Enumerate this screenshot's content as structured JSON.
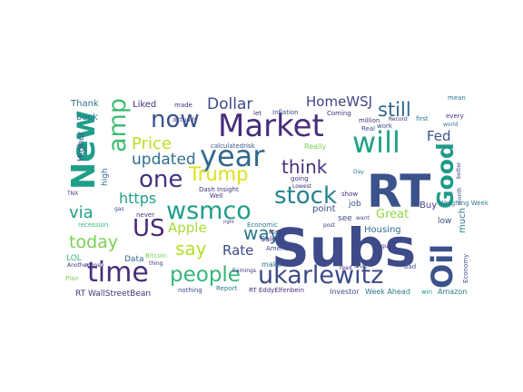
{
  "words": [
    {
      "text": "Subs",
      "color": "#3e4a89"
    },
    {
      "text": "RT",
      "color": "#3b528b"
    },
    {
      "text": "Market",
      "color": "#472d7b"
    },
    {
      "text": "New",
      "color": "#1f9e89"
    },
    {
      "text": "year",
      "color": "#31688e"
    },
    {
      "text": "Oil",
      "color": "#3b528b"
    },
    {
      "text": "will",
      "color": "#20a386"
    },
    {
      "text": "time",
      "color": "#472d7b"
    },
    {
      "text": "ukarlewitz",
      "color": "#3e4a89"
    },
    {
      "text": "Good",
      "color": "#1f9a8a"
    },
    {
      "text": "wsmco",
      "color": "#1f9e89"
    },
    {
      "text": "stock",
      "color": "#26828e"
    },
    {
      "text": "amp",
      "color": "#3fbc73"
    },
    {
      "text": "people",
      "color": "#35b779"
    },
    {
      "text": "now",
      "color": "#3b528b"
    },
    {
      "text": "one",
      "color": "#46327e"
    },
    {
      "text": "US",
      "color": "#482878"
    },
    {
      "text": "Trump",
      "color": "#d8e219"
    },
    {
      "text": "Price",
      "color": "#bddf26"
    },
    {
      "text": "think",
      "color": "#46327e"
    },
    {
      "text": "still",
      "color": "#31688e"
    },
    {
      "text": "updated",
      "color": "#2d708e"
    },
    {
      "text": "say",
      "color": "#b5de2b"
    },
    {
      "text": "today",
      "color": "#7ad151"
    },
    {
      "text": "via",
      "color": "#1f9e89"
    },
    {
      "text": "way",
      "color": "#2a788e"
    },
    {
      "text": "Dollar",
      "color": "#3e4a89"
    },
    {
      "text": "https",
      "color": "#1f9e89"
    },
    {
      "text": "Rate",
      "color": "#3e4a89"
    },
    {
      "text": "Apple",
      "color": "#a5db36"
    },
    {
      "text": "HomeWSJ",
      "color": "#414487"
    },
    {
      "text": "Fed",
      "color": "#3b528b"
    },
    {
      "text": "Great",
      "color": "#8fd744"
    },
    {
      "text": "Buy",
      "color": "#433e85"
    },
    {
      "text": "Liked",
      "color": "#46327e"
    },
    {
      "text": "Thank",
      "color": "#2c728e"
    },
    {
      "text": "back",
      "color": "#2a788e"
    },
    {
      "text": "Higher",
      "color": "#3b528b"
    },
    {
      "text": "high",
      "color": "#2f6c8e"
    },
    {
      "text": "Data",
      "color": "#31688e"
    },
    {
      "text": "LOL",
      "color": "#35b779"
    },
    {
      "text": "Plan",
      "color": "#7ad151"
    },
    {
      "text": "RT WallStreetBean",
      "color": "#46327e"
    },
    {
      "text": "Report",
      "color": "#2a788e"
    },
    {
      "text": "nothing",
      "color": "#3e4a89"
    },
    {
      "text": "RT EddyElfenbein",
      "color": "#472d7b"
    },
    {
      "text": "Investor",
      "color": "#3b528b"
    },
    {
      "text": "Week Ahead",
      "color": "#2a788e"
    },
    {
      "text": "win",
      "color": "#1f9e89"
    },
    {
      "text": "Amazon",
      "color": "#2a788e"
    },
    {
      "text": "Economy",
      "color": "#3b528b"
    },
    {
      "text": "Housing",
      "color": "#2d708e"
    },
    {
      "text": "low",
      "color": "#3e4a89"
    },
    {
      "text": "much",
      "color": "#2a788e"
    },
    {
      "text": "job",
      "color": "#3b528b"
    },
    {
      "text": "see",
      "color": "#3e4a89"
    },
    {
      "text": "point",
      "color": "#3e4a89"
    },
    {
      "text": "Sale",
      "color": "#482878"
    },
    {
      "text": "make",
      "color": "#2c728e"
    },
    {
      "text": "May",
      "color": "#46327e"
    },
    {
      "text": "America",
      "color": "#3e4a89"
    },
    {
      "text": "Economic",
      "color": "#2a788e"
    },
    {
      "text": "Really",
      "color": "#7ad151"
    },
    {
      "text": "Well",
      "color": "#46327e"
    },
    {
      "text": "never",
      "color": "#46327e"
    },
    {
      "text": "Inflation",
      "color": "#3e4a89"
    },
    {
      "text": "Coming",
      "color": "#472d7b"
    },
    {
      "text": "work",
      "color": "#3e4a89"
    },
    {
      "text": "mean",
      "color": "#2a788e"
    },
    {
      "text": "every",
      "color": "#46327e"
    },
    {
      "text": "first",
      "color": "#2a788e"
    },
    {
      "text": "Real",
      "color": "#3e4a89"
    },
    {
      "text": "million",
      "color": "#472d7b"
    },
    {
      "text": "made",
      "color": "#46327e"
    },
    {
      "text": "let",
      "color": "#472d7b"
    },
    {
      "text": "actually",
      "color": "#3e4a89"
    },
    {
      "text": "calculatedrisk",
      "color": "#3b528b"
    },
    {
      "text": "Dash Insight",
      "color": "#46327e"
    },
    {
      "text": "bad",
      "color": "#3e4a89"
    },
    {
      "text": "true",
      "color": "#3e4a89"
    },
    {
      "text": "read",
      "color": "#472d7b"
    },
    {
      "text": "post",
      "color": "#46327e"
    },
    {
      "text": "show",
      "color": "#472d7b"
    },
    {
      "text": "want",
      "color": "#3e4a89"
    },
    {
      "text": "Day",
      "color": "#2a788e"
    },
    {
      "text": "money",
      "color": "#46327e"
    },
    {
      "text": "Another",
      "color": "#46327e"
    },
    {
      "text": "gas",
      "color": "#3e4a89"
    },
    {
      "text": "recession",
      "color": "#35b779"
    },
    {
      "text": "TNX",
      "color": "#46327e"
    },
    {
      "text": "Bitcoin",
      "color": "#7ad151"
    },
    {
      "text": "thing",
      "color": "#46327e"
    },
    {
      "text": "Earnings",
      "color": "#472d7b"
    },
    {
      "text": "right",
      "color": "#46327e"
    },
    {
      "text": "going",
      "color": "#472d7b"
    },
    {
      "text": "Lowest",
      "color": "#472d7b"
    },
    {
      "text": "Weighing Week",
      "color": "#2a788e"
    },
    {
      "text": "better",
      "color": "#3e4a89"
    },
    {
      "text": "month",
      "color": "#3e4a89"
    },
    {
      "text": "world",
      "color": "#2a788e"
    },
    {
      "text": "Record",
      "color": "#472d7b"
    },
    {
      "text": "guy",
      "color": "#472d7b"
    }
  ]
}
